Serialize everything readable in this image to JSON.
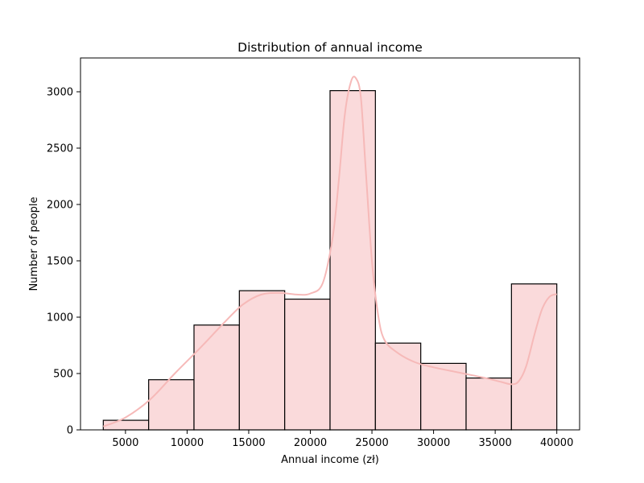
{
  "chart_data": {
    "type": "bar",
    "title": "Distribution of annual income",
    "xlabel": "Annual income (zł)",
    "ylabel": "Number of people",
    "xlim": [
      1350,
      41850
    ],
    "ylim": [
      0,
      3300
    ],
    "xticks": [
      5000,
      10000,
      15000,
      20000,
      25000,
      30000,
      35000,
      40000
    ],
    "yticks": [
      0,
      500,
      1000,
      1500,
      2000,
      2500,
      3000
    ],
    "bin_edges": [
      3200,
      6880,
      10560,
      14240,
      17920,
      21600,
      25280,
      28960,
      32640,
      36320,
      40000
    ],
    "values": [
      85,
      445,
      930,
      1235,
      1160,
      3010,
      770,
      590,
      460,
      1295
    ],
    "kde": {
      "x": [
        3200,
        5000,
        7000,
        9000,
        11000,
        13000,
        14500,
        16000,
        17500,
        19000,
        20000,
        21000,
        21800,
        22300,
        22800,
        23300,
        23700,
        24100,
        24500,
        25000,
        25500,
        26000,
        27000,
        28500,
        30000,
        32000,
        34000,
        35500,
        36300,
        36900,
        37500,
        38200,
        38800,
        39400,
        40000
      ],
      "y": [
        30,
        110,
        270,
        500,
        720,
        950,
        1110,
        1200,
        1215,
        1200,
        1210,
        1300,
        1700,
        2200,
        2800,
        3090,
        3120,
        2950,
        2300,
        1500,
        1020,
        800,
        690,
        600,
        555,
        510,
        465,
        425,
        405,
        430,
        560,
        850,
        1070,
        1180,
        1205
      ]
    },
    "grid": false,
    "colors": {
      "bar_fill": "#fadadb",
      "bar_edge": "#000000",
      "kde_line": "#f6b9b8"
    }
  }
}
